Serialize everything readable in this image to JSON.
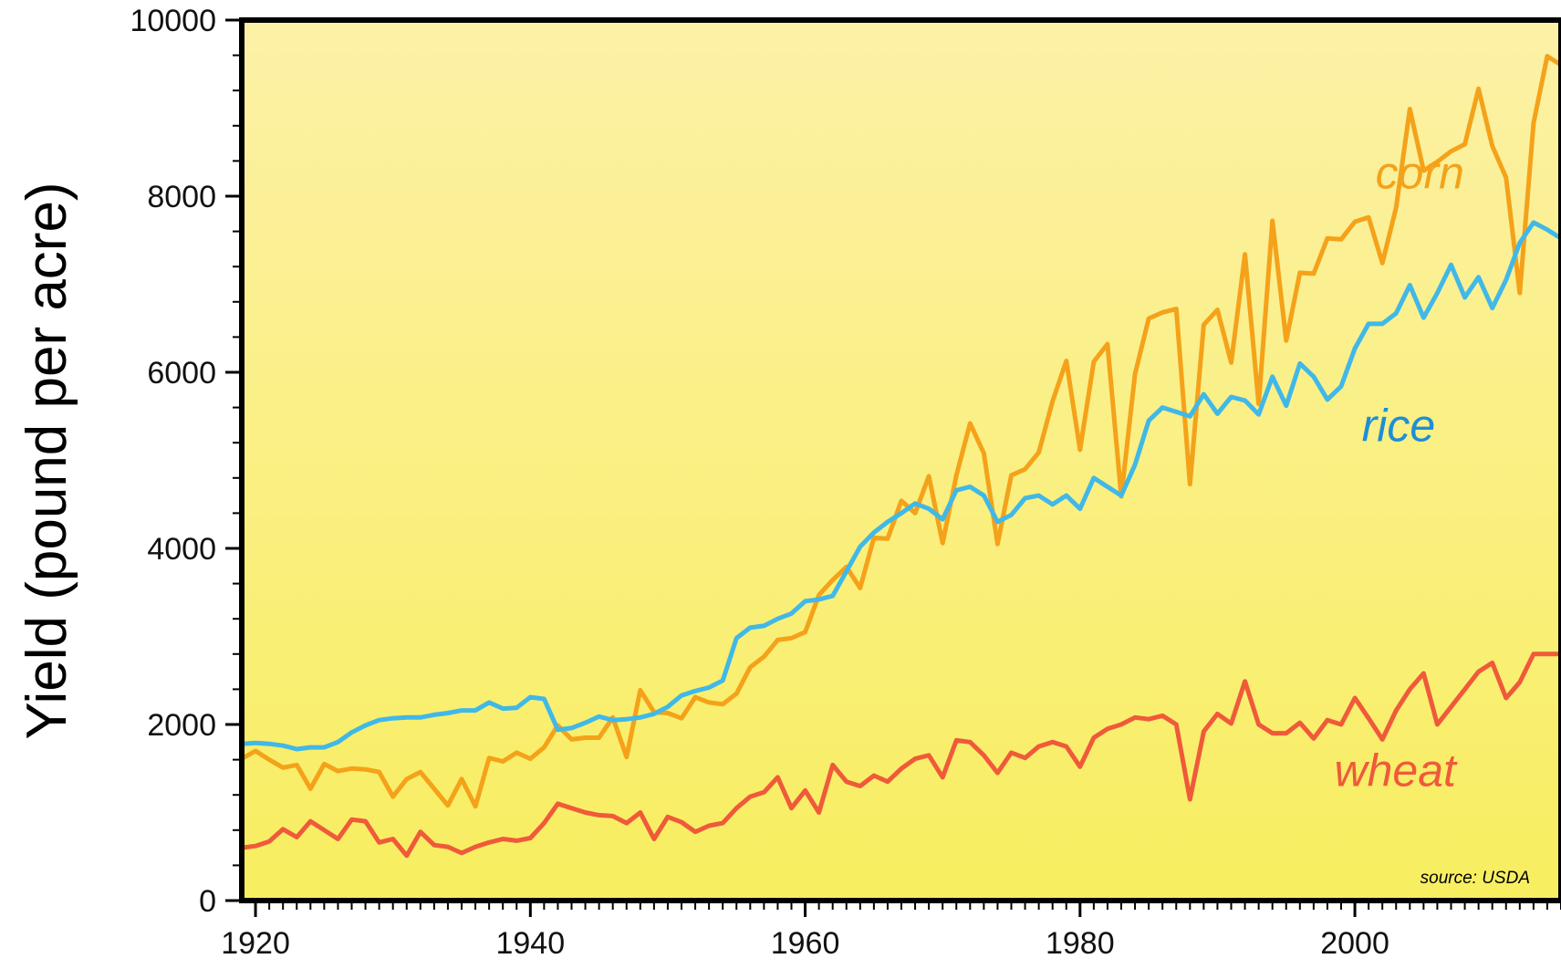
{
  "chart_data": {
    "type": "line",
    "title": "",
    "xlabel": "",
    "ylabel": "Yield (pound per acre)",
    "xlim": [
      1919,
      2015
    ],
    "ylim": [
      0,
      10000
    ],
    "x_ticks": [
      "1920",
      "1940",
      "1960",
      "1980",
      "2000"
    ],
    "y_ticks": [
      "0",
      "2000",
      "4000",
      "6000",
      "8000",
      "10000"
    ],
    "legend": "direct labels on lines",
    "source": "source: USDA",
    "colors": {
      "background_top": "#fcf1a6",
      "background_bottom": "#f8ee60",
      "frame": "#000000"
    },
    "series": [
      {
        "name": "corn",
        "color": "#f4a21a",
        "x": [
          1919,
          1920,
          1921,
          1922,
          1923,
          1924,
          1925,
          1926,
          1927,
          1928,
          1929,
          1930,
          1931,
          1932,
          1933,
          1934,
          1935,
          1936,
          1937,
          1938,
          1939,
          1940,
          1941,
          1942,
          1943,
          1944,
          1945,
          1946,
          1947,
          1948,
          1949,
          1950,
          1951,
          1952,
          1953,
          1954,
          1955,
          1956,
          1957,
          1958,
          1959,
          1960,
          1961,
          1962,
          1963,
          1964,
          1965,
          1966,
          1967,
          1968,
          1969,
          1970,
          1971,
          1972,
          1973,
          1974,
          1975,
          1976,
          1977,
          1978,
          1979,
          1980,
          1981,
          1982,
          1983,
          1984,
          1985,
          1986,
          1987,
          1988,
          1989,
          1990,
          1991,
          1992,
          1993,
          1994,
          1995,
          1996,
          1997,
          1998,
          1999,
          2000,
          2001,
          2002,
          2003,
          2004,
          2005,
          2006,
          2007,
          2008,
          2009,
          2010,
          2011,
          2012,
          2013,
          2014,
          2015
        ],
        "y": [
          1610,
          1700,
          1600,
          1510,
          1540,
          1270,
          1550,
          1470,
          1500,
          1490,
          1460,
          1180,
          1380,
          1460,
          1270,
          1080,
          1380,
          1070,
          1620,
          1580,
          1680,
          1610,
          1740,
          1990,
          1830,
          1850,
          1850,
          2080,
          1630,
          2390,
          2140,
          2130,
          2070,
          2310,
          2250,
          2230,
          2350,
          2650,
          2770,
          2960,
          2980,
          3050,
          3470,
          3640,
          3790,
          3550,
          4120,
          4110,
          4540,
          4400,
          4820,
          4060,
          4830,
          5420,
          5080,
          4050,
          4830,
          4900,
          5090,
          5670,
          6130,
          5120,
          6120,
          6320,
          4590,
          5980,
          6610,
          6680,
          6720,
          4730,
          6540,
          6710,
          6110,
          7340,
          5640,
          7720,
          6360,
          7130,
          7120,
          7520,
          7510,
          7710,
          7760,
          7240,
          7870,
          8990,
          8290,
          8390,
          8510,
          8590,
          9220,
          8570,
          8210,
          6900,
          8830,
          9590,
          9490
        ]
      },
      {
        "name": "rice",
        "color": "#40b8e8",
        "x": [
          1919,
          1920,
          1921,
          1922,
          1923,
          1924,
          1925,
          1926,
          1927,
          1928,
          1929,
          1930,
          1931,
          1932,
          1933,
          1934,
          1935,
          1936,
          1937,
          1938,
          1939,
          1940,
          1941,
          1942,
          1943,
          1944,
          1945,
          1946,
          1947,
          1948,
          1949,
          1950,
          1951,
          1952,
          1953,
          1954,
          1955,
          1956,
          1957,
          1958,
          1959,
          1960,
          1961,
          1962,
          1963,
          1964,
          1965,
          1966,
          1967,
          1968,
          1969,
          1970,
          1971,
          1972,
          1973,
          1974,
          1975,
          1976,
          1977,
          1978,
          1979,
          1980,
          1981,
          1982,
          1983,
          1984,
          1985,
          1986,
          1987,
          1988,
          1989,
          1990,
          1991,
          1992,
          1993,
          1994,
          1995,
          1996,
          1997,
          1998,
          1999,
          2000,
          2001,
          2002,
          2003,
          2004,
          2005,
          2006,
          2007,
          2008,
          2009,
          2010,
          2011,
          2012,
          2013,
          2014,
          2015
        ],
        "y": [
          1780,
          1790,
          1780,
          1760,
          1720,
          1740,
          1740,
          1800,
          1910,
          1990,
          2050,
          2070,
          2080,
          2080,
          2110,
          2130,
          2160,
          2160,
          2250,
          2180,
          2190,
          2310,
          2290,
          1940,
          1960,
          2020,
          2090,
          2050,
          2060,
          2080,
          2120,
          2200,
          2330,
          2380,
          2420,
          2500,
          2980,
          3100,
          3120,
          3200,
          3260,
          3400,
          3420,
          3460,
          3740,
          4020,
          4180,
          4300,
          4400,
          4510,
          4450,
          4330,
          4660,
          4700,
          4600,
          4300,
          4380,
          4570,
          4600,
          4500,
          4600,
          4450,
          4800,
          4700,
          4600,
          4950,
          5450,
          5600,
          5550,
          5500,
          5750,
          5530,
          5720,
          5680,
          5520,
          5950,
          5620,
          6100,
          5950,
          5690,
          5840,
          6270,
          6550,
          6550,
          6670,
          6990,
          6620,
          6900,
          7220,
          6850,
          7080,
          6730,
          7050,
          7470,
          7700,
          7620,
          7520
        ]
      },
      {
        "name": "wheat",
        "color": "#ef5a3a",
        "x": [
          1919,
          1920,
          1921,
          1922,
          1923,
          1924,
          1925,
          1926,
          1927,
          1928,
          1929,
          1930,
          1931,
          1932,
          1933,
          1934,
          1935,
          1936,
          1937,
          1938,
          1939,
          1940,
          1941,
          1942,
          1943,
          1944,
          1945,
          1946,
          1947,
          1948,
          1949,
          1950,
          1951,
          1952,
          1953,
          1954,
          1955,
          1956,
          1957,
          1958,
          1959,
          1960,
          1961,
          1962,
          1963,
          1964,
          1965,
          1966,
          1967,
          1968,
          1969,
          1970,
          1971,
          1972,
          1973,
          1974,
          1975,
          1976,
          1977,
          1978,
          1979,
          1980,
          1981,
          1982,
          1983,
          1984,
          1985,
          1986,
          1987,
          1988,
          1989,
          1990,
          1991,
          1992,
          1993,
          1994,
          1995,
          1996,
          1997,
          1998,
          1999,
          2000,
          2001,
          2002,
          2003,
          2004,
          2005,
          2006,
          2007,
          2008,
          2009,
          2010,
          2011,
          2012,
          2013,
          2014,
          2015
        ],
        "y": [
          600,
          620,
          670,
          810,
          720,
          900,
          800,
          700,
          920,
          900,
          660,
          700,
          510,
          780,
          630,
          610,
          540,
          610,
          660,
          700,
          680,
          710,
          880,
          1100,
          1050,
          1000,
          970,
          960,
          880,
          1000,
          700,
          950,
          890,
          780,
          850,
          880,
          1050,
          1180,
          1230,
          1400,
          1050,
          1250,
          1000,
          1540,
          1350,
          1300,
          1420,
          1350,
          1500,
          1610,
          1650,
          1400,
          1820,
          1800,
          1650,
          1450,
          1680,
          1620,
          1750,
          1800,
          1750,
          1520,
          1850,
          1950,
          2000,
          2080,
          2060,
          2100,
          2000,
          1150,
          1920,
          2120,
          2010,
          2490,
          2000,
          1900,
          1900,
          2020,
          1840,
          2050,
          2000,
          2300,
          2070,
          1830,
          2160,
          2400,
          2580,
          2000,
          2200,
          2400,
          2600,
          2700,
          2300,
          2480,
          2800,
          2800,
          2800
        ]
      }
    ],
    "labels": {
      "corn": {
        "text": "corn",
        "x": 2001.5,
        "y": 8090
      },
      "rice": {
        "text": "rice",
        "x": 2000.5,
        "y": 5220
      },
      "wheat": {
        "text": "wheat",
        "x": 1998.5,
        "y": 1300
      }
    }
  }
}
